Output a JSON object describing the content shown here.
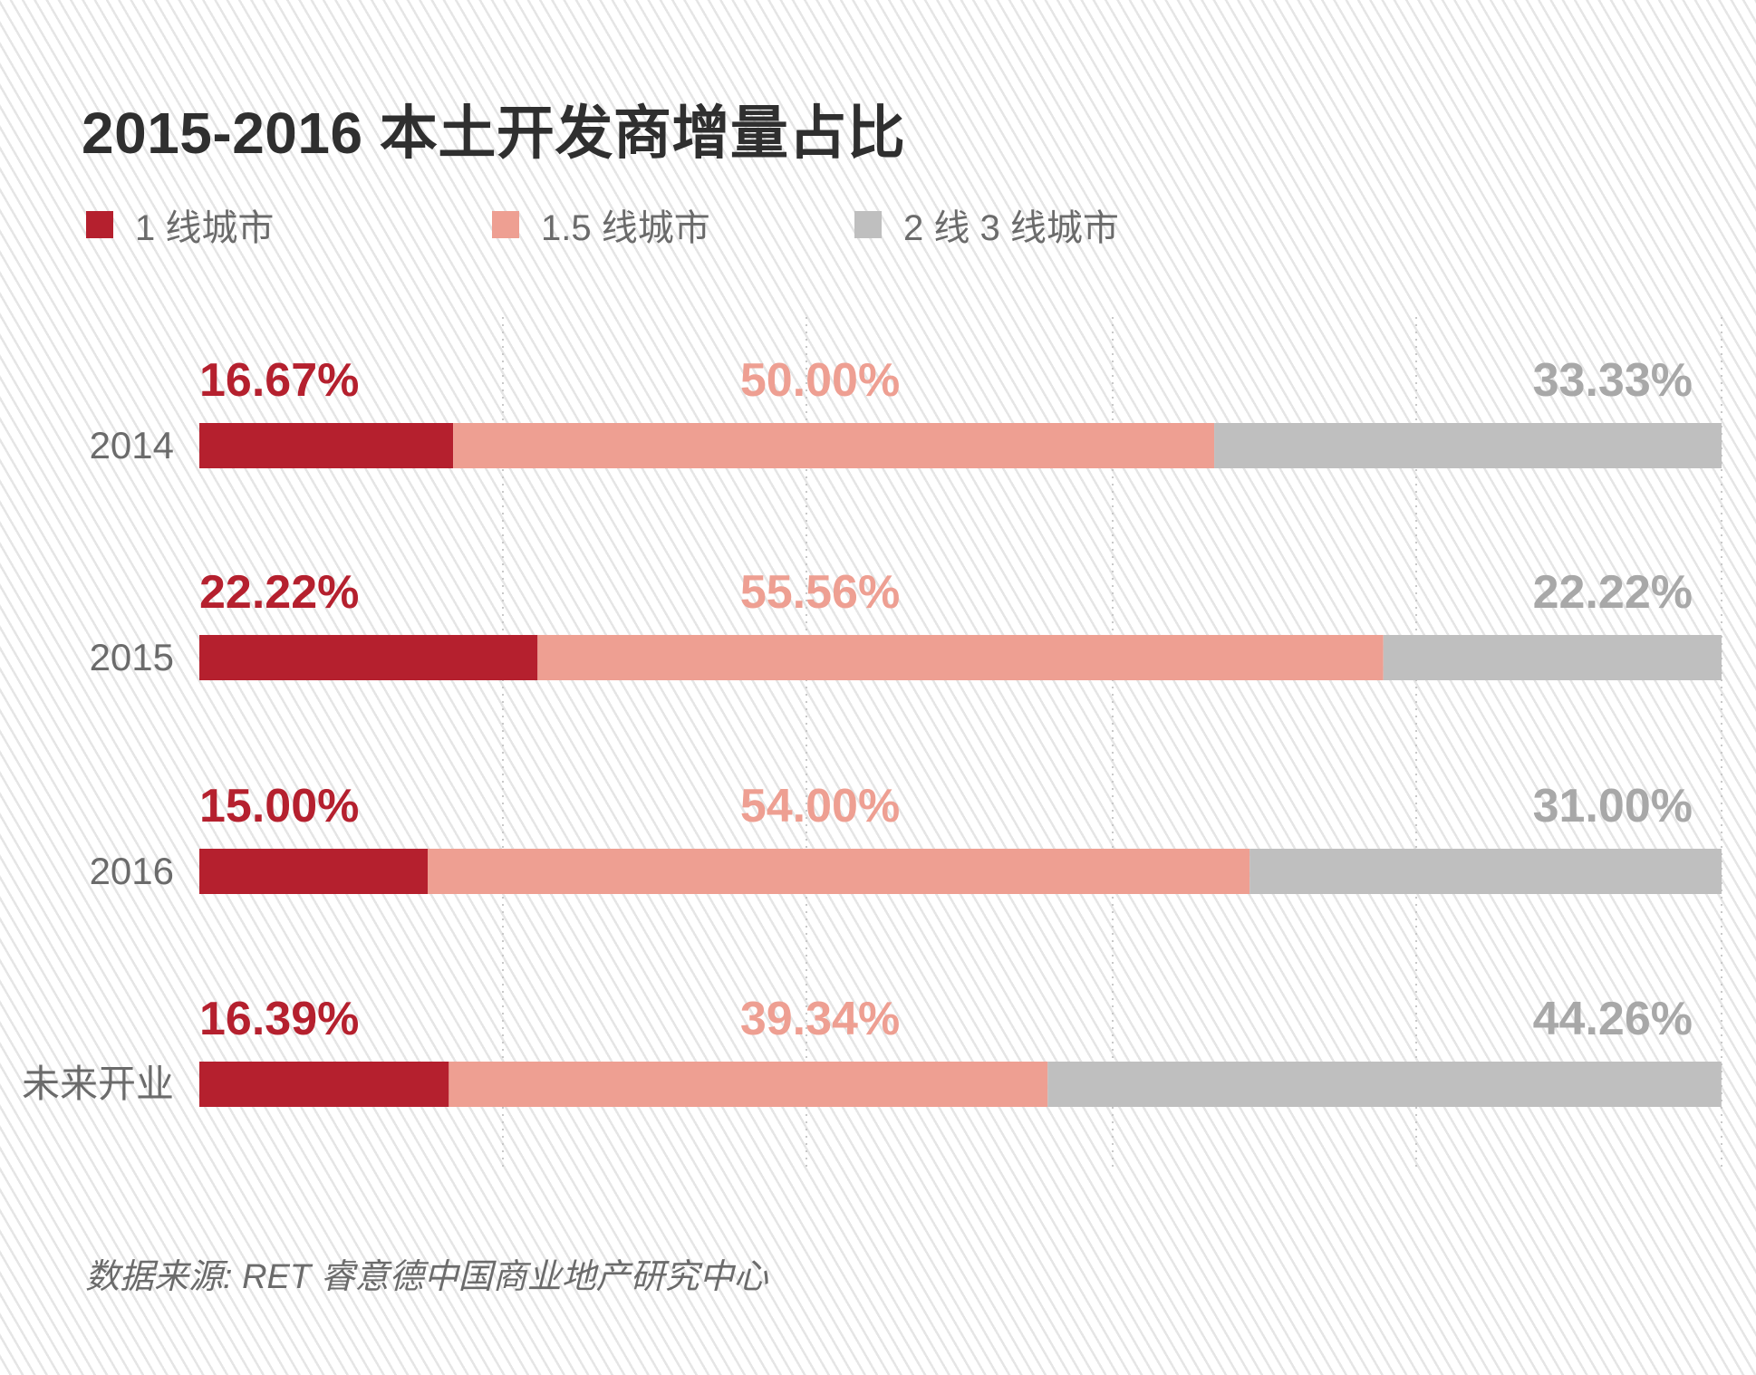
{
  "title": "2015-2016 本土开发商增量占比",
  "legend": [
    {
      "label": "1 线城市",
      "color": "#b5202e"
    },
    {
      "label": "1.5 线城市",
      "color": "#ee9f92"
    },
    {
      "label": "2 线 3 线城市",
      "color": "#bfbfbf"
    }
  ],
  "source": "数据来源: RET 睿意德中国商业地产研究中心",
  "chart_data": {
    "type": "bar",
    "stacked": true,
    "orientation": "horizontal",
    "normalized": true,
    "title": "2015-2016 本土开发商增量占比",
    "categories": [
      "2014",
      "2015",
      "2016",
      "未来开业"
    ],
    "series": [
      {
        "name": "1 线城市",
        "color": "#b5202e",
        "values": [
          16.67,
          22.22,
          15.0,
          16.39
        ],
        "labels": [
          "16.67%",
          "22.22%",
          "15.00%",
          "16.39%"
        ]
      },
      {
        "name": "1.5 线城市",
        "color": "#ee9f92",
        "values": [
          50.0,
          55.56,
          54.0,
          39.34
        ],
        "labels": [
          "50.00%",
          "55.56%",
          "54.00%",
          "39.34%"
        ]
      },
      {
        "name": "2 线 3 线城市",
        "color": "#bfbfbf",
        "values": [
          33.33,
          22.22,
          31.0,
          44.26
        ],
        "labels": [
          "33.33%",
          "22.22%",
          "31.00%",
          "44.26%"
        ]
      }
    ],
    "xlim": [
      0,
      100
    ],
    "unit": "%",
    "grid": true,
    "grid_style": "dotted vertical",
    "legend_position": "top-left"
  }
}
